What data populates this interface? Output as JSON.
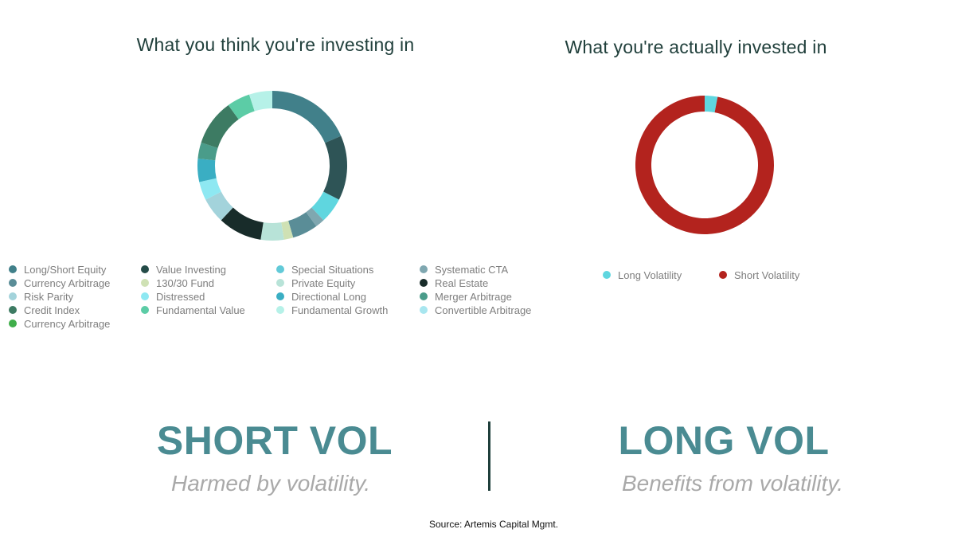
{
  "colors": {
    "accent": "#4a8b92",
    "title": "#21403c",
    "subtitle": "#a9a9a9",
    "legend_text": "#7e7e7e"
  },
  "chart_data": [
    {
      "type": "pie",
      "variant": "donut",
      "title": "What you think you're investing in",
      "legend_placement": "bottom",
      "legend_columns": [
        [
          "Long/Short Equity",
          "Currency Arbitrage",
          "Risk Parity",
          "Credit Index",
          "Currency Arbitrage"
        ],
        [
          "Value Investing",
          "130/30 Fund",
          "Distressed",
          "Fundamental Value"
        ],
        [
          "Special Situations",
          "Private Equity",
          "Directional Long",
          "Fundamental Growth"
        ],
        [
          "Systematic CTA",
          "Real Estate",
          "Merger Arbitrage",
          "Convertible Arbitrage"
        ]
      ],
      "legend_colors": {
        "Long/Short Equity": "#41808a",
        "Currency Arbitrage": "#5a8d97",
        "Risk Parity": "#a3d3db",
        "Credit Index": "#3d7b63",
        "Value Investing": "#244b48",
        "130/30 Fund": "#cfe1b4",
        "Distressed": "#8ee8f2",
        "Fundamental Value": "#5ccca6",
        "Special Situations": "#62cad8",
        "Private Equity": "#b8e3d8",
        "Directional Long": "#3aaec3",
        "Fundamental Growth": "#b6f1e8",
        "Systematic CTA": "#7fa7b0",
        "Real Estate": "#182c2a",
        "Merger Arbitrage": "#4a9c8a",
        "Convertible Arbitrage": "#a8e6ef"
      },
      "slices": [
        {
          "color": "#41808a",
          "value": 18.5
        },
        {
          "color": "#2e5456",
          "value": 14.0
        },
        {
          "color": "#5fd6df",
          "value": 5.5
        },
        {
          "color": "#7fa7b0",
          "value": 2.0
        },
        {
          "color": "#5a8d97",
          "value": 5.5
        },
        {
          "color": "#cfe1b4",
          "value": 2.0
        },
        {
          "color": "#b8e3d8",
          "value": 5.0
        },
        {
          "color": "#182c2a",
          "value": 9.5
        },
        {
          "color": "#a3d3db",
          "value": 5.5
        },
        {
          "color": "#8ee8f2",
          "value": 4.0
        },
        {
          "color": "#3aaec3",
          "value": 5.0
        },
        {
          "color": "#4a9c8a",
          "value": 3.5
        },
        {
          "color": "#3d7b63",
          "value": 10.0
        },
        {
          "color": "#5ccca6",
          "value": 5.0
        },
        {
          "color": "#b6f1e8",
          "value": 5.0
        }
      ]
    },
    {
      "type": "pie",
      "variant": "donut",
      "title": "What you're actually invested in",
      "legend_placement": "bottom",
      "categories": [
        "Long Volatility",
        "Short Volatility"
      ],
      "values": [
        3,
        97
      ],
      "colors": [
        "#5fd6df",
        "#b3231e"
      ]
    }
  ],
  "labels": {
    "short_vol": "SHORT VOL",
    "short_vol_sub": "Harmed by volatility.",
    "long_vol": "LONG VOL",
    "long_vol_sub": "Benefits from volatility.",
    "source": "Source: Artemis Capital Mgmt."
  }
}
